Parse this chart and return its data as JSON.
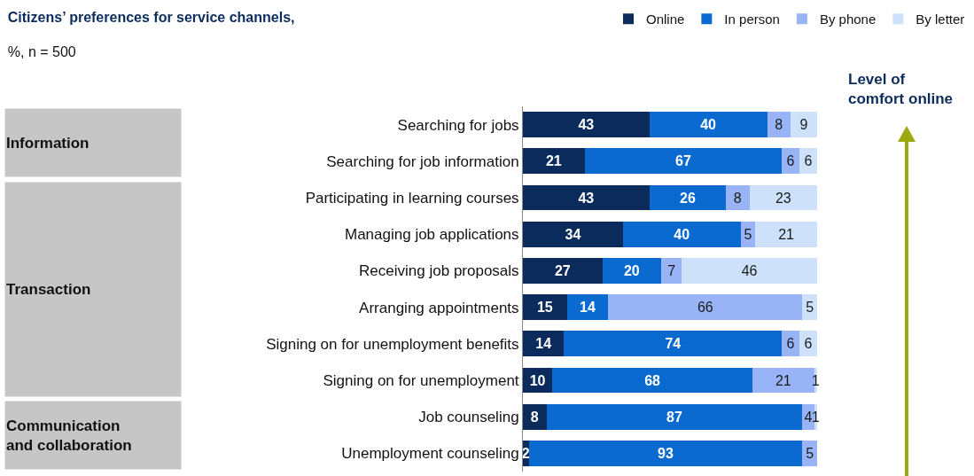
{
  "chart_data": {
    "type": "bar",
    "orientation": "horizontal",
    "stacked": true,
    "title": "Citizens’ preferences for service channels,",
    "subtitle": "%, n = 500",
    "categories": [
      "Searching for jobs",
      "Searching for job information",
      "Participating in learning courses",
      "Managing job applications",
      "Receiving job proposals",
      "Arranging appointments",
      "Signing on for unemployment benefits",
      "Signing on for unemployment",
      "Job counseling",
      "Unemployment counseling"
    ],
    "series": [
      {
        "name": "Online",
        "color": "#0b2b5c",
        "values": [
          43,
          21,
          43,
          34,
          27,
          15,
          14,
          10,
          8,
          2
        ]
      },
      {
        "name": "In person",
        "color": "#0a6ad0",
        "values": [
          40,
          67,
          26,
          40,
          20,
          14,
          74,
          68,
          87,
          93
        ]
      },
      {
        "name": "By phone",
        "color": "#99b3f7",
        "values": [
          8,
          6,
          8,
          5,
          7,
          66,
          6,
          21,
          4,
          5
        ]
      },
      {
        "name": "By letter",
        "color": "#cde1fa",
        "values": [
          9,
          6,
          23,
          21,
          46,
          5,
          6,
          1,
          1,
          null
        ]
      }
    ],
    "xlim": [
      0,
      100
    ],
    "data_labels": true,
    "legend": "top right",
    "grid": false,
    "tick_labels": "y",
    "annotations": [
      "Information",
      "Transaction",
      "Communication and collaboration",
      "Level of comfort online"
    ]
  }
}
